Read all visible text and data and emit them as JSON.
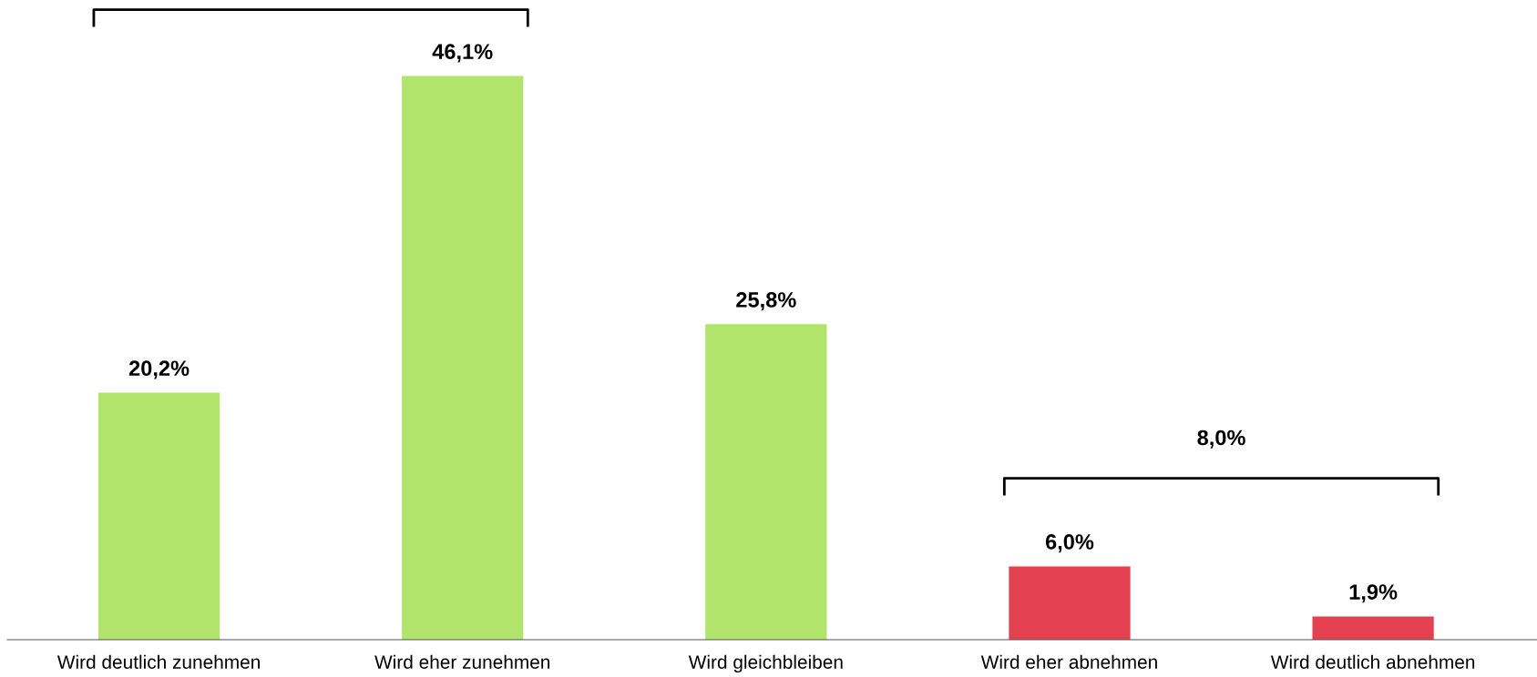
{
  "chart_data": {
    "type": "bar",
    "categories": [
      "Wird deutlich zunehmen",
      "Wird eher zunehmen",
      "Wird gleichbleiben",
      "Wird eher abnehmen",
      "Wird deutlich abnehmen"
    ],
    "values": [
      20.2,
      46.1,
      25.8,
      6.0,
      1.9
    ],
    "value_labels": [
      "20,2%",
      "46,1%",
      "25,8%",
      "6,0%",
      "1,9%"
    ],
    "colors": [
      "#b1e46a",
      "#b1e46a",
      "#b1e46a",
      "#e44150",
      "#e44150"
    ],
    "annotations": [
      "8,0%"
    ],
    "grid": false,
    "legend": false
  }
}
